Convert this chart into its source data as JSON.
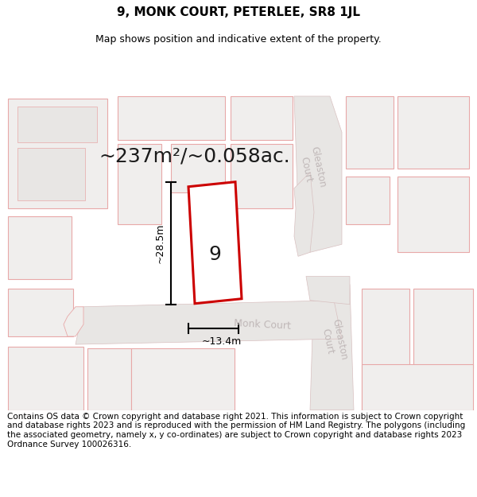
{
  "title": "9, MONK COURT, PETERLEE, SR8 1JL",
  "subtitle": "Map shows position and indicative extent of the property.",
  "area_text": "~237m²/~0.058ac.",
  "dim_width": "~13.4m",
  "dim_height": "~28.5m",
  "label_number": "9",
  "footer": "Contains OS data © Crown copyright and database right 2021. This information is subject to Crown copyright and database rights 2023 and is reproduced with the permission of HM Land Registry. The polygons (including the associated geometry, namely x, y co-ordinates) are subject to Crown copyright and database rights 2023 Ordnance Survey 100026316.",
  "map_bg": "#ffffff",
  "bld_fill": "#f0eeed",
  "bld_ec": "#e8a8a8",
  "bld_lw": 0.8,
  "road_fill": "#e8e6e4",
  "road_ec": "#d8c0c0",
  "plot_ec": "#cc0000",
  "plot_lw": 2.2,
  "plot_fill": "#ffffff",
  "dim_color": "#000000",
  "label_color": "#1a1a1a",
  "road_label_color": "#c0b8b8",
  "title_fontsize": 11,
  "subtitle_fontsize": 9,
  "area_fontsize": 18,
  "label_fontsize": 18,
  "dim_fontsize": 9,
  "footer_fontsize": 7.5
}
